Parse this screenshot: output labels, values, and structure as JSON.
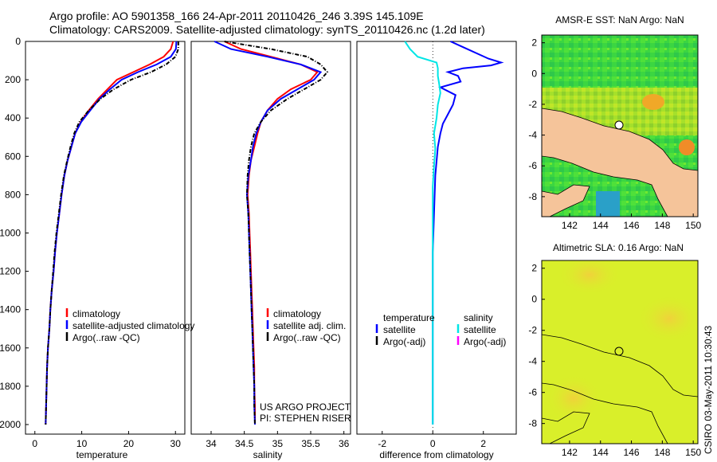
{
  "header": {
    "line1": "Argo profile: AO 5901358_166 24-Apr-2011 20110426_246 3.39S 145.109E",
    "line2": "Climatology: CARS2009. Satellite-adjusted climatology: synTS_20110426.nc (1.2d later)"
  },
  "colors": {
    "clim": "#ff0000",
    "sat": "#0000ff",
    "argo": "#000000",
    "sal_sat": "#00e6e6",
    "sal_argo": "#ff00ff",
    "land": "#f5c49a",
    "sea": "#d9ef2a"
  },
  "chart_data": [
    {
      "id": "temperature",
      "type": "line",
      "xlabel": "temperature",
      "xlim": [
        -2,
        32
      ],
      "xticks": [
        0,
        10,
        20,
        30
      ],
      "ylim": [
        0,
        2050
      ],
      "yticks": [
        0,
        200,
        400,
        600,
        800,
        1000,
        1200,
        1400,
        1600,
        1800,
        2000
      ],
      "legend": [
        "climatology",
        "satellite-adjusted climatology",
        "Argo(..raw -QC)"
      ],
      "series": [
        {
          "name": "climatology",
          "color": "#ff0000",
          "dash": "",
          "points": [
            [
              29.5,
              0
            ],
            [
              29.0,
              40
            ],
            [
              27.5,
              80
            ],
            [
              24.5,
              120
            ],
            [
              21.0,
              160
            ],
            [
              17.5,
              200
            ],
            [
              15.5,
              250
            ],
            [
              13.5,
              300
            ],
            [
              11.5,
              360
            ],
            [
              9.8,
              420
            ],
            [
              8.6,
              480
            ],
            [
              7.8,
              550
            ],
            [
              7.0,
              620
            ],
            [
              6.3,
              700
            ],
            [
              5.7,
              800
            ],
            [
              5.2,
              900
            ],
            [
              4.7,
              1000
            ],
            [
              4.3,
              1100
            ],
            [
              4.0,
              1200
            ],
            [
              3.6,
              1300
            ],
            [
              3.3,
              1400
            ],
            [
              3.1,
              1500
            ],
            [
              2.8,
              1600
            ],
            [
              2.6,
              1700
            ],
            [
              2.5,
              1800
            ],
            [
              2.4,
              1900
            ],
            [
              2.3,
              2000
            ]
          ]
        },
        {
          "name": "satellite-adjusted climatology",
          "color": "#0000ff",
          "dash": "",
          "points": [
            [
              30.2,
              0
            ],
            [
              30.1,
              40
            ],
            [
              29.0,
              80
            ],
            [
              26.0,
              120
            ],
            [
              22.0,
              160
            ],
            [
              18.5,
              200
            ],
            [
              16.0,
              250
            ],
            [
              13.8,
              300
            ],
            [
              11.8,
              360
            ],
            [
              9.9,
              420
            ],
            [
              8.6,
              480
            ],
            [
              7.8,
              550
            ],
            [
              7.0,
              620
            ],
            [
              6.3,
              700
            ],
            [
              5.7,
              800
            ],
            [
              5.2,
              900
            ],
            [
              4.7,
              1000
            ],
            [
              4.3,
              1100
            ],
            [
              4.0,
              1200
            ],
            [
              3.6,
              1300
            ],
            [
              3.3,
              1400
            ],
            [
              3.1,
              1500
            ],
            [
              2.8,
              1600
            ],
            [
              2.6,
              1700
            ],
            [
              2.5,
              1800
            ],
            [
              2.4,
              1900
            ],
            [
              2.3,
              2000
            ]
          ]
        },
        {
          "name": "Argo(..raw -QC)",
          "color": "#000000",
          "dash": "5,2,1,2",
          "points": [
            [
              30.6,
              0
            ],
            [
              30.6,
              40
            ],
            [
              30.0,
              80
            ],
            [
              28.0,
              120
            ],
            [
              24.8,
              160
            ],
            [
              20.5,
              200
            ],
            [
              16.8,
              250
            ],
            [
              14.0,
              300
            ],
            [
              11.5,
              360
            ],
            [
              9.5,
              420
            ],
            [
              8.4,
              480
            ],
            [
              7.6,
              550
            ],
            [
              6.9,
              620
            ],
            [
              6.2,
              700
            ],
            [
              5.6,
              800
            ],
            [
              5.1,
              900
            ],
            [
              4.6,
              1000
            ],
            [
              4.2,
              1100
            ],
            [
              3.9,
              1200
            ],
            [
              3.6,
              1300
            ],
            [
              3.3,
              1400
            ],
            [
              3.1,
              1500
            ],
            [
              2.8,
              1600
            ],
            [
              2.6,
              1700
            ],
            [
              2.5,
              1800
            ],
            [
              2.4,
              1900
            ],
            [
              2.3,
              2000
            ]
          ]
        }
      ]
    },
    {
      "id": "salinity",
      "type": "line",
      "xlabel": "salinity",
      "xlim": [
        33.7,
        36.1
      ],
      "xticks": [
        34,
        34.5,
        35,
        35.5,
        36
      ],
      "ylim": [
        0,
        2050
      ],
      "legend": [
        "climatology",
        "satellite adj. clim.",
        "Argo(..raw -QC)"
      ],
      "annotation": [
        "US ARGO PROJECT",
        "PI: STEPHEN RISER"
      ],
      "series": [
        {
          "name": "climatology",
          "color": "#ff0000",
          "dash": "",
          "points": [
            [
              34.2,
              0
            ],
            [
              34.45,
              40
            ],
            [
              34.9,
              80
            ],
            [
              35.35,
              120
            ],
            [
              35.6,
              160
            ],
            [
              35.5,
              200
            ],
            [
              35.2,
              250
            ],
            [
              35.0,
              300
            ],
            [
              34.85,
              360
            ],
            [
              34.75,
              420
            ],
            [
              34.7,
              480
            ],
            [
              34.65,
              550
            ],
            [
              34.6,
              620
            ],
            [
              34.57,
              700
            ],
            [
              34.55,
              800
            ],
            [
              34.57,
              900
            ],
            [
              34.58,
              1000
            ],
            [
              34.59,
              1100
            ],
            [
              34.6,
              1200
            ],
            [
              34.61,
              1300
            ],
            [
              34.62,
              1400
            ],
            [
              34.63,
              1500
            ],
            [
              34.64,
              1600
            ],
            [
              34.65,
              1700
            ],
            [
              34.65,
              1800
            ],
            [
              34.66,
              1900
            ],
            [
              34.66,
              2000
            ]
          ]
        },
        {
          "name": "satellite adj. clim.",
          "color": "#0000ff",
          "dash": "",
          "points": [
            [
              34.05,
              0
            ],
            [
              34.3,
              40
            ],
            [
              34.85,
              80
            ],
            [
              35.35,
              120
            ],
            [
              35.65,
              160
            ],
            [
              35.55,
              200
            ],
            [
              35.3,
              250
            ],
            [
              35.05,
              300
            ],
            [
              34.85,
              360
            ],
            [
              34.75,
              420
            ],
            [
              34.68,
              480
            ],
            [
              34.63,
              550
            ],
            [
              34.6,
              620
            ],
            [
              34.56,
              700
            ],
            [
              34.54,
              800
            ],
            [
              34.56,
              900
            ],
            [
              34.57,
              1000
            ],
            [
              34.58,
              1100
            ],
            [
              34.59,
              1200
            ],
            [
              34.6,
              1300
            ],
            [
              34.61,
              1400
            ],
            [
              34.62,
              1500
            ],
            [
              34.63,
              1600
            ],
            [
              34.64,
              1700
            ],
            [
              34.65,
              1800
            ],
            [
              34.65,
              1900
            ],
            [
              34.66,
              2000
            ]
          ]
        },
        {
          "name": "Argo(..raw -QC)",
          "color": "#000000",
          "dash": "5,2,1,2",
          "points": [
            [
              34.2,
              0
            ],
            [
              34.9,
              40
            ],
            [
              35.45,
              80
            ],
            [
              35.65,
              120
            ],
            [
              35.75,
              160
            ],
            [
              35.65,
              200
            ],
            [
              35.4,
              250
            ],
            [
              35.15,
              300
            ],
            [
              34.9,
              360
            ],
            [
              34.75,
              420
            ],
            [
              34.65,
              480
            ],
            [
              34.6,
              550
            ],
            [
              34.57,
              620
            ],
            [
              34.55,
              700
            ],
            [
              34.54,
              800
            ],
            [
              34.56,
              900
            ],
            [
              34.57,
              1000
            ],
            [
              34.58,
              1100
            ],
            [
              34.59,
              1200
            ],
            [
              34.6,
              1300
            ],
            [
              34.61,
              1400
            ],
            [
              34.62,
              1500
            ],
            [
              34.63,
              1600
            ],
            [
              34.64,
              1700
            ],
            [
              34.65,
              1800
            ],
            [
              34.65,
              1900
            ],
            [
              34.66,
              2000
            ]
          ]
        }
      ]
    },
    {
      "id": "difference",
      "type": "line",
      "xlabel": "difference from climatology",
      "xlim": [
        -3,
        3.3
      ],
      "xticks": [
        -2,
        0,
        2
      ],
      "ylim": [
        0,
        2050
      ],
      "legend_left": [
        "temperature",
        "satellite",
        "Argo(-adj)"
      ],
      "legend_right": [
        "salinity",
        "satellite",
        "Argo(-adj)"
      ],
      "series": [
        {
          "name": "temperature satellite",
          "color": "#0000ff",
          "dash": "",
          "points": [
            [
              0.7,
              0
            ],
            [
              1.2,
              30
            ],
            [
              2.2,
              90
            ],
            [
              2.7,
              110
            ],
            [
              2.3,
              125
            ],
            [
              1.2,
              140
            ],
            [
              0.6,
              160
            ],
            [
              1.0,
              180
            ],
            [
              1.1,
              210
            ],
            [
              0.3,
              240
            ],
            [
              0.9,
              280
            ],
            [
              0.8,
              330
            ],
            [
              0.6,
              380
            ],
            [
              0.4,
              430
            ],
            [
              0.3,
              480
            ],
            [
              0.2,
              550
            ],
            [
              0.1,
              700
            ],
            [
              0.05,
              900
            ],
            [
              0.0,
              1100
            ],
            [
              0.0,
              1400
            ],
            [
              0.0,
              1700
            ],
            [
              0.0,
              2000
            ]
          ]
        },
        {
          "name": "salinity satellite",
          "color": "#00e6e6",
          "dash": "",
          "points": [
            [
              -1.1,
              0
            ],
            [
              -0.9,
              40
            ],
            [
              -0.6,
              80
            ],
            [
              0.15,
              110
            ],
            [
              0.2,
              140
            ],
            [
              0.2,
              180
            ],
            [
              0.25,
              220
            ],
            [
              0.3,
              270
            ],
            [
              0.2,
              330
            ],
            [
              0.15,
              400
            ],
            [
              0.05,
              480
            ],
            [
              0.1,
              560
            ],
            [
              0.05,
              650
            ],
            [
              0.0,
              760
            ],
            [
              0.0,
              900
            ],
            [
              0.0,
              1100
            ],
            [
              0.0,
              1400
            ],
            [
              0.0,
              1700
            ],
            [
              0.0,
              2000
            ]
          ]
        }
      ]
    },
    {
      "id": "sst-map",
      "type": "heatmap",
      "title": "AMSR-E SST: NaN Argo: NaN",
      "xticks": [
        142,
        144,
        146,
        148,
        150
      ],
      "yticks": [
        2,
        0,
        -2,
        -4,
        -6,
        -8
      ],
      "xlim": [
        140.2,
        150.3
      ],
      "ylim": [
        -9.3,
        2.5
      ],
      "marker": [
        145.109,
        -3.39
      ]
    },
    {
      "id": "sla-map",
      "type": "heatmap",
      "title": "Altimetric SLA: 0.16 Argo: NaN",
      "xticks": [
        142,
        144,
        146,
        148,
        150
      ],
      "yticks": [
        2,
        0,
        -2,
        -4,
        -6,
        -8
      ],
      "xlim": [
        140.2,
        150.3
      ],
      "ylim": [
        -9.3,
        2.5
      ],
      "marker": [
        145.109,
        -3.39
      ]
    }
  ],
  "side_label": "CSIRO 03-May-2011 10:30:43"
}
